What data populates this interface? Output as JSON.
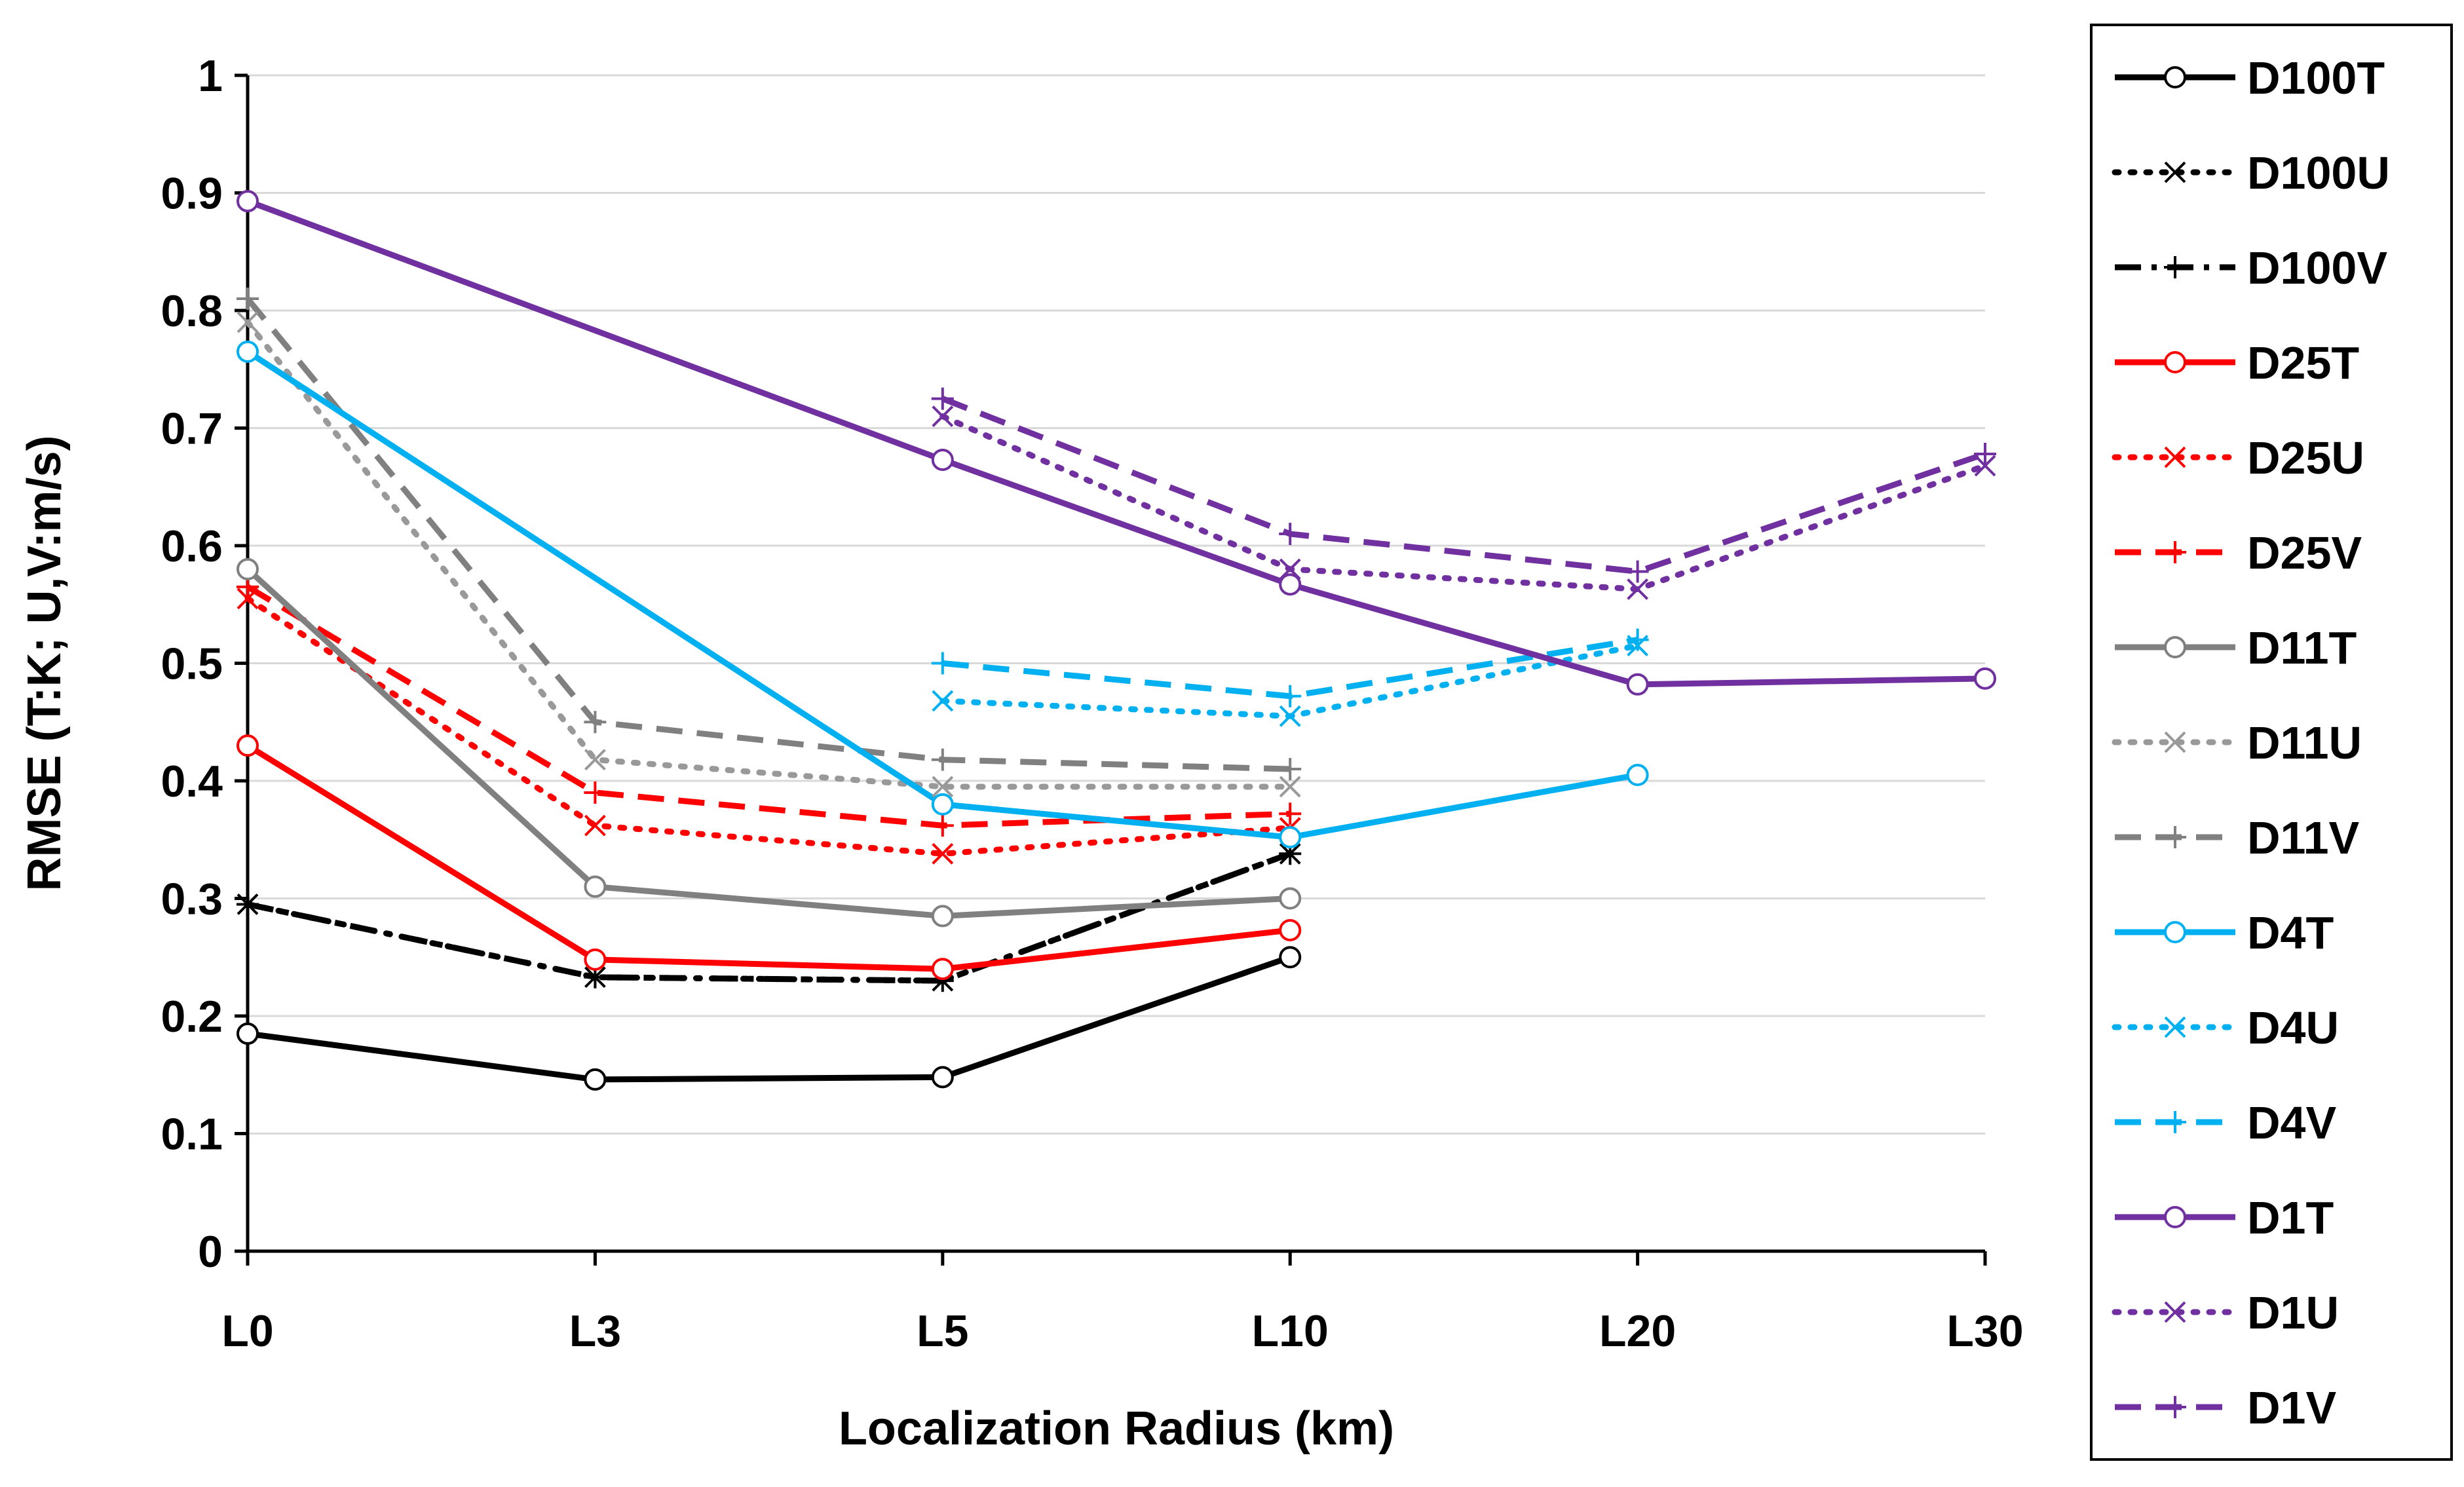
{
  "chart_data": {
    "type": "line",
    "title": "",
    "xlabel": "Localization Radius (km)",
    "ylabel": "RMSE (T:K; U,V:m/s)",
    "categories": [
      "L0",
      "L3",
      "L5",
      "L10",
      "L20",
      "L30"
    ],
    "ylim": [
      0,
      1
    ],
    "yticks": [
      "0",
      "0.1",
      "0.2",
      "0.3",
      "0.4",
      "0.5",
      "0.6",
      "0.7",
      "0.8",
      "0.9",
      "1"
    ],
    "grid": true,
    "legend_position": "right",
    "series": [
      {
        "name": "D100T",
        "color": "#000000",
        "dash": "solid",
        "marker": "circle",
        "values": [
          0.185,
          0.146,
          0.148,
          0.25,
          null,
          null
        ]
      },
      {
        "name": "D100U",
        "color": "#000000",
        "dash": "dot",
        "marker": "x",
        "values": [
          0.295,
          0.233,
          0.23,
          0.338,
          null,
          null
        ]
      },
      {
        "name": "D100V",
        "color": "#000000",
        "dash": "dashdot",
        "marker": "plus",
        "values": [
          0.295,
          0.233,
          0.23,
          0.338,
          null,
          null
        ]
      },
      {
        "name": "D25T",
        "color": "#ff0000",
        "dash": "solid",
        "marker": "circle",
        "values": [
          0.43,
          0.248,
          0.24,
          0.273,
          null,
          null
        ]
      },
      {
        "name": "D25U",
        "color": "#ff0000",
        "dash": "dot",
        "marker": "x",
        "values": [
          0.555,
          0.362,
          0.338,
          0.36,
          null,
          null
        ]
      },
      {
        "name": "D25V",
        "color": "#ff0000",
        "dash": "dash",
        "marker": "plus",
        "values": [
          0.565,
          0.39,
          0.362,
          0.372,
          null,
          null
        ]
      },
      {
        "name": "D11T",
        "color": "#808080",
        "dash": "solid",
        "marker": "circle",
        "values": [
          0.58,
          0.31,
          0.285,
          0.3,
          null,
          null
        ]
      },
      {
        "name": "D11U",
        "color": "#999999",
        "dash": "dot",
        "marker": "x",
        "values": [
          0.79,
          0.418,
          0.395,
          0.395,
          null,
          null
        ]
      },
      {
        "name": "D11V",
        "color": "#808080",
        "dash": "dash",
        "marker": "plus",
        "values": [
          0.81,
          0.45,
          0.418,
          0.41,
          null,
          null
        ]
      },
      {
        "name": "D4T",
        "color": "#00b0f0",
        "dash": "solid",
        "marker": "circle",
        "values": [
          0.765,
          null,
          0.38,
          0.352,
          0.405,
          null
        ]
      },
      {
        "name": "D4U",
        "color": "#00b0f0",
        "dash": "dot",
        "marker": "x",
        "values": [
          null,
          null,
          0.468,
          0.455,
          0.515,
          null
        ]
      },
      {
        "name": "D4V",
        "color": "#00b0f0",
        "dash": "dash",
        "marker": "plus",
        "values": [
          null,
          null,
          0.5,
          0.472,
          0.52,
          null
        ]
      },
      {
        "name": "D1T",
        "color": "#7030a0",
        "dash": "solid",
        "marker": "circle",
        "values": [
          0.893,
          null,
          0.673,
          0.567,
          0.482,
          0.487
        ]
      },
      {
        "name": "D1U",
        "color": "#7030a0",
        "dash": "dot",
        "marker": "x",
        "values": [
          null,
          null,
          0.71,
          0.58,
          0.563,
          0.668
        ]
      },
      {
        "name": "D1V",
        "color": "#7030a0",
        "dash": "dash",
        "marker": "plus",
        "values": [
          null,
          null,
          0.725,
          0.61,
          0.578,
          0.678
        ]
      }
    ]
  }
}
